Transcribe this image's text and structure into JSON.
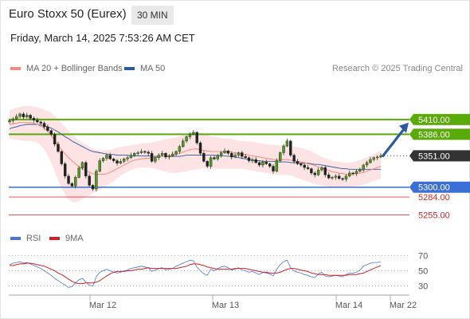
{
  "header": {
    "title": "Euro Stoxx 50 (Eurex)",
    "interval": "30 MIN",
    "datetime": "Friday, March 14, 2025 7:53:26 AM CET",
    "credit": "Research © 2025 Trading Central"
  },
  "legend": {
    "ma20": "MA 20 + Bollinger Bands",
    "ma50": "MA 50",
    "rsi": "RSI",
    "ma9": "9MA"
  },
  "colors": {
    "ma20": "#f28b82",
    "band_fill": "#fde3e3",
    "ma50": "#2c5aa0",
    "resistance": "#5aaa0a",
    "support": "#3b6fd8",
    "target": "#e03b3b",
    "current": "#333333",
    "arrow": "#2c5aa0",
    "rsi": "#4a73d8",
    "rsi_ma": "#d81f1f"
  },
  "chart_data": [
    {
      "type": "candlestick",
      "ylim": [
        5240,
        5450
      ],
      "x_labels": [
        "Mar 12",
        "Mar 13",
        "Mar 14",
        "Mar 22"
      ],
      "levels": [
        {
          "value": 5410.0,
          "label": "5410.00",
          "kind": "resistance"
        },
        {
          "value": 5386.0,
          "label": "5386.00",
          "kind": "resistance"
        },
        {
          "value": 5351.0,
          "label": "5351.00",
          "kind": "current"
        },
        {
          "value": 5300.0,
          "label": "5300.00",
          "kind": "support"
        },
        {
          "value": 5284.0,
          "label": "5284.00",
          "kind": "target"
        },
        {
          "value": 5255.0,
          "label": "5255.00",
          "kind": "target"
        }
      ],
      "close": [
        5408,
        5411,
        5415,
        5419,
        5414,
        5417,
        5412,
        5409,
        5406,
        5404,
        5398,
        5392,
        5386,
        5370,
        5358,
        5338,
        5318,
        5306,
        5302,
        5316,
        5331,
        5340,
        5318,
        5303,
        5297,
        5326,
        5343,
        5347,
        5352,
        5346,
        5343,
        5339,
        5342,
        5346,
        5348,
        5352,
        5355,
        5356,
        5358,
        5357,
        5355,
        5342,
        5348,
        5352,
        5355,
        5349,
        5351,
        5354,
        5358,
        5366,
        5375,
        5382,
        5386,
        5389,
        5372,
        5355,
        5342,
        5334,
        5348,
        5346,
        5352,
        5356,
        5359,
        5355,
        5349,
        5352,
        5356,
        5350,
        5348,
        5343,
        5345,
        5340,
        5336,
        5341,
        5338,
        5334,
        5326,
        5343,
        5356,
        5367,
        5375,
        5352,
        5342,
        5338,
        5336,
        5332,
        5330,
        5323,
        5320,
        5328,
        5332,
        5320,
        5315,
        5316,
        5318,
        5314,
        5313,
        5318,
        5323,
        5322,
        5326,
        5328,
        5336,
        5340,
        5345,
        5348,
        5349,
        5351
      ],
      "ma20": [
        5402,
        5403,
        5404,
        5405,
        5405,
        5405,
        5405,
        5404,
        5402,
        5399,
        5396,
        5391,
        5384,
        5376,
        5368,
        5361,
        5354,
        5348,
        5343,
        5338,
        5333,
        5330,
        5327,
        5324,
        5322,
        5321,
        5321,
        5321,
        5322,
        5324,
        5327,
        5330,
        5333,
        5336,
        5339,
        5342,
        5344,
        5345,
        5346,
        5347,
        5347,
        5348,
        5348,
        5349,
        5350,
        5350,
        5351,
        5352,
        5353,
        5355,
        5357,
        5359,
        5361,
        5362,
        5362,
        5361,
        5360,
        5359,
        5358,
        5358,
        5358,
        5358,
        5358,
        5358,
        5357,
        5356,
        5355,
        5354,
        5353,
        5352,
        5351,
        5350,
        5349,
        5348,
        5347,
        5346,
        5345,
        5344,
        5344,
        5345,
        5345,
        5344,
        5343,
        5342,
        5341,
        5340,
        5338,
        5337,
        5335,
        5333,
        5331,
        5329,
        5327,
        5325,
        5324,
        5323,
        5322,
        5321,
        5321,
        5322,
        5322,
        5323,
        5324,
        5326,
        5328,
        5330,
        5332,
        5334
      ],
      "band_upper": [
        5425,
        5427,
        5429,
        5431,
        5432,
        5432,
        5432,
        5431,
        5430,
        5428,
        5426,
        5424,
        5421,
        5416,
        5410,
        5404,
        5398,
        5392,
        5386,
        5381,
        5376,
        5372,
        5369,
        5366,
        5363,
        5361,
        5360,
        5360,
        5360,
        5361,
        5362,
        5364,
        5365,
        5366,
        5367,
        5368,
        5369,
        5370,
        5371,
        5372,
        5372,
        5373,
        5374,
        5375,
        5377,
        5378,
        5379,
        5380,
        5381,
        5383,
        5385,
        5387,
        5389,
        5390,
        5390,
        5389,
        5387,
        5385,
        5383,
        5382,
        5381,
        5380,
        5379,
        5379,
        5378,
        5377,
        5376,
        5375,
        5375,
        5374,
        5374,
        5373,
        5372,
        5371,
        5370,
        5369,
        5369,
        5368,
        5368,
        5368,
        5368,
        5367,
        5366,
        5365,
        5364,
        5362,
        5360,
        5358,
        5355,
        5352,
        5349,
        5347,
        5345,
        5343,
        5342,
        5341,
        5340,
        5340,
        5340,
        5341,
        5342,
        5344,
        5346,
        5348,
        5351,
        5354,
        5357,
        5359
      ],
      "band_lower": [
        5379,
        5378,
        5377,
        5376,
        5375,
        5375,
        5375,
        5374,
        5372,
        5368,
        5362,
        5352,
        5340,
        5325,
        5312,
        5299,
        5288,
        5280,
        5276,
        5275,
        5277,
        5281,
        5284,
        5287,
        5290,
        5293,
        5296,
        5299,
        5302,
        5306,
        5310,
        5314,
        5318,
        5322,
        5325,
        5328,
        5330,
        5331,
        5332,
        5332,
        5332,
        5331,
        5330,
        5328,
        5327,
        5325,
        5324,
        5323,
        5323,
        5324,
        5325,
        5326,
        5327,
        5328,
        5329,
        5330,
        5330,
        5330,
        5330,
        5330,
        5330,
        5330,
        5330,
        5330,
        5330,
        5330,
        5330,
        5330,
        5329,
        5328,
        5327,
        5326,
        5325,
        5324,
        5323,
        5322,
        5321,
        5320,
        5320,
        5320,
        5320,
        5319,
        5317,
        5315,
        5313,
        5311,
        5309,
        5307,
        5305,
        5304,
        5303,
        5302,
        5301,
        5300,
        5300,
        5300,
        5300,
        5300,
        5300,
        5301,
        5302,
        5303,
        5304,
        5306,
        5308,
        5310,
        5312,
        5314
      ],
      "ma50": [
        5395,
        5397,
        5398,
        5400,
        5401,
        5402,
        5402,
        5402,
        5402,
        5401,
        5400,
        5398,
        5396,
        5393,
        5390,
        5386,
        5382,
        5379,
        5375,
        5372,
        5369,
        5366,
        5363,
        5360,
        5358,
        5357,
        5356,
        5355,
        5354,
        5353,
        5353,
        5352,
        5352,
        5352,
        5352,
        5351,
        5351,
        5351,
        5351,
        5351,
        5351,
        5350,
        5350,
        5350,
        5350,
        5350,
        5350,
        5350,
        5350,
        5350,
        5351,
        5352,
        5352,
        5352,
        5352,
        5352,
        5352,
        5352,
        5352,
        5352,
        5351,
        5351,
        5351,
        5350,
        5350,
        5349,
        5348,
        5347,
        5346,
        5345,
        5344,
        5343,
        5343,
        5342,
        5342,
        5342,
        5342,
        5341,
        5341,
        5341,
        5341,
        5340,
        5340,
        5340,
        5339,
        5339,
        5339,
        5338,
        5337,
        5337,
        5336,
        5335,
        5334,
        5333,
        5332,
        5331,
        5330,
        5330,
        5329,
        5329,
        5329,
        5329,
        5329,
        5329,
        5329,
        5329,
        5329,
        5329
      ],
      "forecast_arrow": {
        "from": 5351,
        "to": 5405
      }
    },
    {
      "type": "line",
      "name": "RSI",
      "ylim": [
        20,
        80
      ],
      "y_ticks": [
        70,
        50,
        30
      ],
      "series": [
        {
          "name": "RSI",
          "values": [
            58,
            60,
            61,
            62,
            60,
            61,
            59,
            57,
            55,
            53,
            50,
            47,
            44,
            40,
            37,
            34,
            31,
            28,
            29,
            34,
            38,
            40,
            35,
            31,
            30,
            42,
            48,
            50,
            52,
            50,
            48,
            47,
            48,
            50,
            51,
            53,
            54,
            55,
            56,
            55,
            54,
            49,
            51,
            53,
            54,
            51,
            52,
            53,
            56,
            58,
            60,
            62,
            64,
            63,
            55,
            50,
            46,
            44,
            52,
            50,
            53,
            55,
            56,
            54,
            51,
            52,
            54,
            51,
            50,
            48,
            49,
            47,
            45,
            48,
            47,
            46,
            43,
            52,
            58,
            62,
            64,
            54,
            50,
            48,
            47,
            45,
            44,
            42,
            41,
            46,
            48,
            43,
            42,
            43,
            44,
            43,
            42,
            45,
            47,
            47,
            48,
            51,
            56,
            58,
            60,
            61,
            61,
            62
          ]
        },
        {
          "name": "9MA",
          "values": [
            57,
            57,
            58,
            59,
            59,
            60,
            60,
            59,
            58,
            57,
            56,
            54,
            52,
            50,
            47,
            45,
            42,
            39,
            36,
            34,
            33,
            33,
            34,
            34,
            34,
            35,
            37,
            40,
            43,
            46,
            48,
            49,
            49,
            49,
            50,
            50,
            51,
            52,
            52,
            53,
            54,
            53,
            53,
            53,
            53,
            53,
            53,
            53,
            53,
            54,
            55,
            56,
            58,
            59,
            59,
            58,
            57,
            55,
            54,
            53,
            52,
            52,
            52,
            52,
            52,
            53,
            53,
            53,
            53,
            52,
            51,
            50,
            49,
            48,
            48,
            47,
            47,
            47,
            48,
            50,
            52,
            53,
            53,
            52,
            51,
            50,
            49,
            47,
            46,
            45,
            45,
            45,
            44,
            44,
            44,
            44,
            44,
            44,
            45,
            45,
            45,
            46,
            47,
            49,
            51,
            53,
            55,
            57
          ]
        }
      ]
    }
  ]
}
